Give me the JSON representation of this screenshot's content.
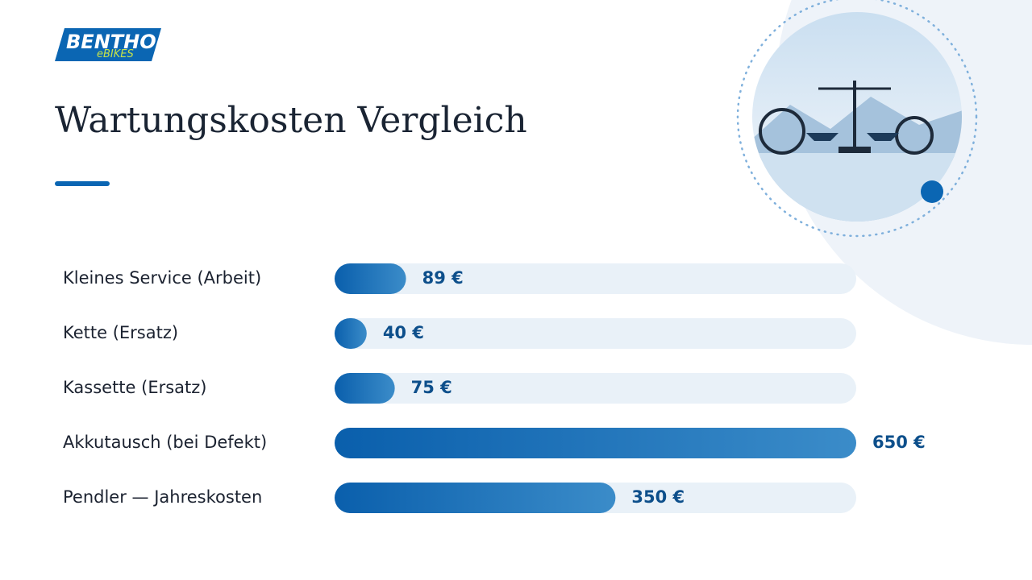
{
  "logo": {
    "brand": "BENTHO",
    "sub": "eBIKES"
  },
  "chart_data": {
    "type": "bar",
    "orientation": "horizontal",
    "title": "Wartungskosten Vergleich",
    "categories": [
      "Kleines Service (Arbeit)",
      "Kette (Ersatz)",
      "Kassette (Ersatz)",
      "Akkutausch (bei Defekt)",
      "Pendler — Jahreskosten"
    ],
    "values": [
      89,
      40,
      75,
      650,
      350
    ],
    "value_labels": [
      "89 €",
      "40 €",
      "75 €",
      "650 €",
      "350 €"
    ],
    "color": "#0b66b3"
  }
}
